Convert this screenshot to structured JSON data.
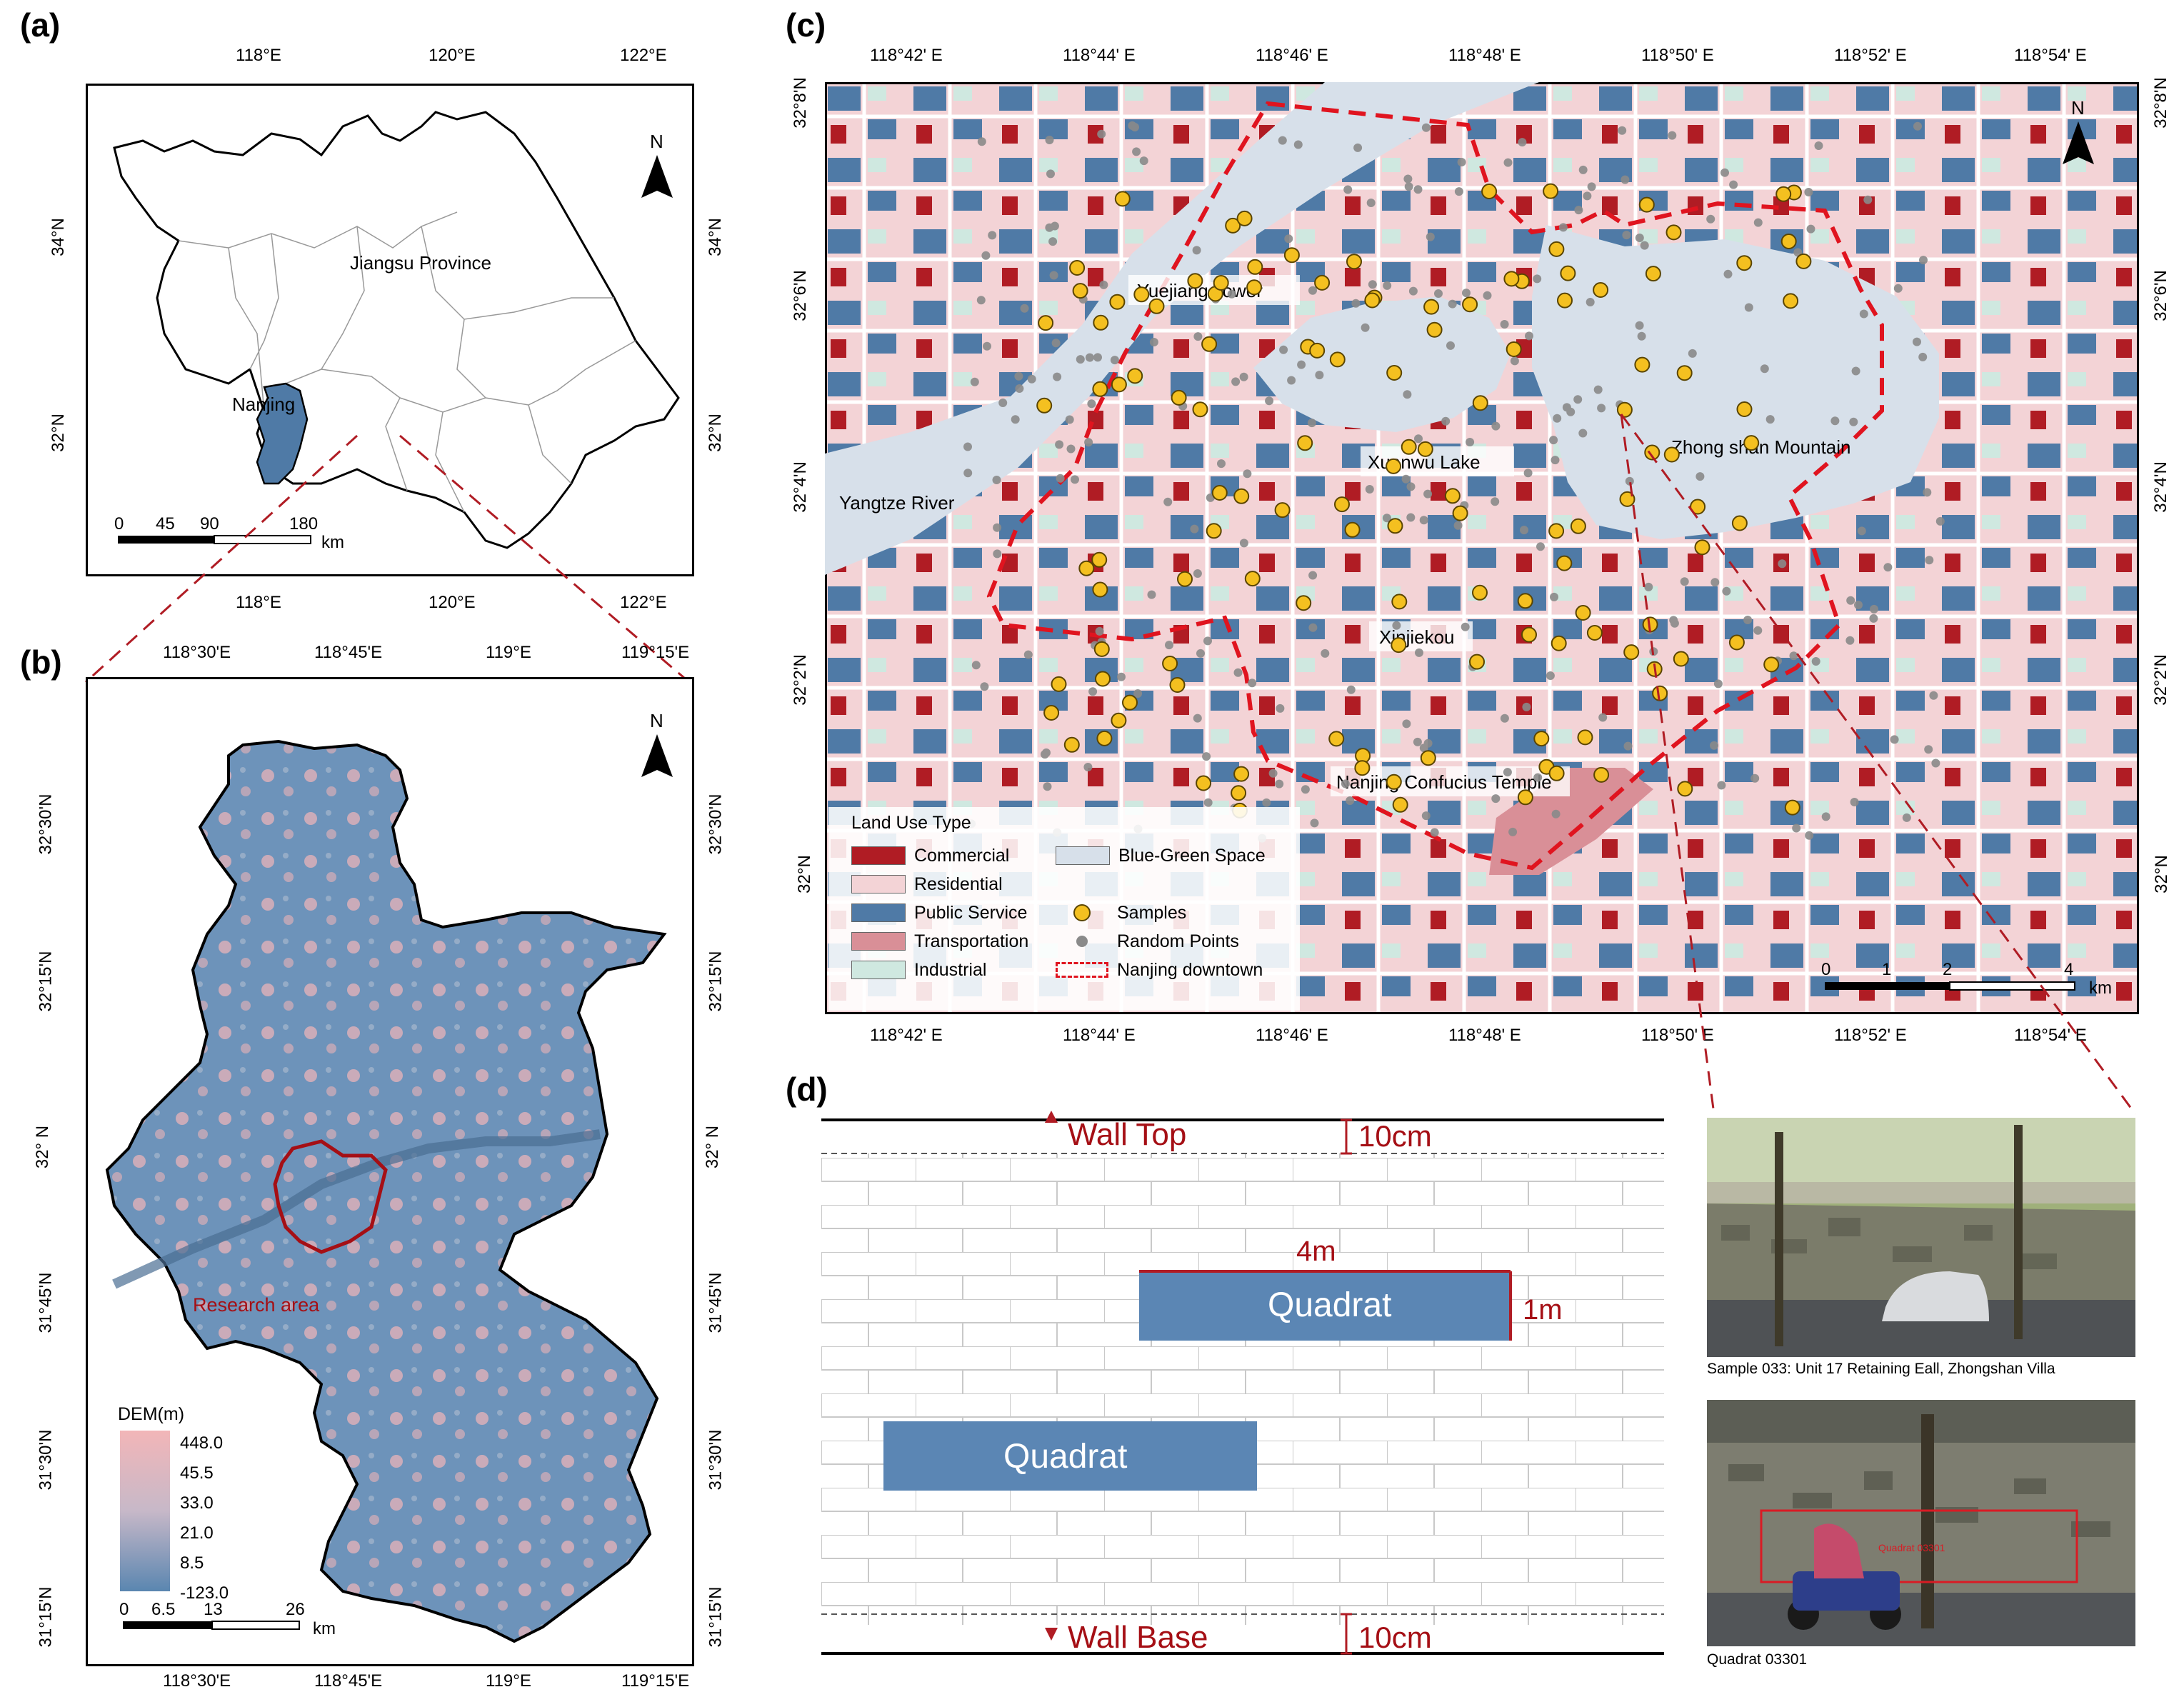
{
  "panels": {
    "a": {
      "label": "(a)",
      "lon_ticks": [
        "118°E",
        "120°E",
        "122°E"
      ],
      "lat_ticks": [
        "34°N",
        "32°N"
      ],
      "province_label": "Jiangsu Province",
      "city_label": "Nanjing",
      "north": "N",
      "scale_ticks": [
        "0",
        "45",
        "90",
        "180"
      ],
      "scale_unit": "km"
    },
    "b": {
      "label": "(b)",
      "lon_ticks": [
        "118°30'E",
        "118°45'E",
        "119°E",
        "119°15'E"
      ],
      "lat_ticks": [
        "32°30'N",
        "32°15'N",
        "32° N",
        "31°45'N",
        "31°30'N",
        "31°15'N"
      ],
      "research_label": "Research area",
      "north": "N",
      "legend_title": "DEM(m)",
      "legend_values": [
        "448.0",
        "45.5",
        "33.0",
        "21.0",
        "8.5",
        "-123.0"
      ],
      "scale_ticks": [
        "0",
        "6.5",
        "13",
        "26"
      ],
      "scale_unit": "km"
    },
    "c": {
      "label": "(c)",
      "lon_ticks": [
        "118°42' E",
        "118°44' E",
        "118°46' E",
        "118°48' E",
        "118°50' E",
        "118°52' E",
        "118°54' E"
      ],
      "lat_ticks": [
        "32°8'N",
        "32°6'N",
        "32°4'N",
        "32°2'N",
        "32°N"
      ],
      "north": "N",
      "places": [
        "Yuejiang Tower",
        "Xuanwu Lake",
        "Zhong shan Mountain",
        "Yangtze River",
        "Xinjiekou",
        "Nanjing Confucius Temple"
      ],
      "legend_title": "Land Use Type",
      "legend_left": [
        {
          "label": "Commercial",
          "color": "#b01c24"
        },
        {
          "label": "Residential",
          "color": "#f3d3d6"
        },
        {
          "label": "Public Service",
          "color": "#4f7aa6"
        },
        {
          "label": "Transportation",
          "color": "#d98f97"
        },
        {
          "label": "Industrial",
          "color": "#cfe8e0"
        }
      ],
      "legend_right": [
        "Blue-Green Space",
        "Samples",
        "Random Points",
        "Nanjing downtown"
      ],
      "legend_bluegreen_color": "#d7e0ea",
      "scale_ticks": [
        "0",
        "1",
        "2",
        "4"
      ],
      "scale_unit": "km"
    },
    "d": {
      "label": "(d)",
      "wall_top": "Wall Top",
      "wall_base": "Wall Base",
      "offset_top": "10cm",
      "offset_base": "10cm",
      "width_label": "4m",
      "height_label": "1m",
      "quadrat_label": "Quadrat",
      "photo1_caption": "Sample 033: Unit 17 Retaining Eall, Zhongshan Villa",
      "photo2_caption": "Quadrat 03301",
      "photo2_box_label": "Quadrat 03301"
    }
  }
}
